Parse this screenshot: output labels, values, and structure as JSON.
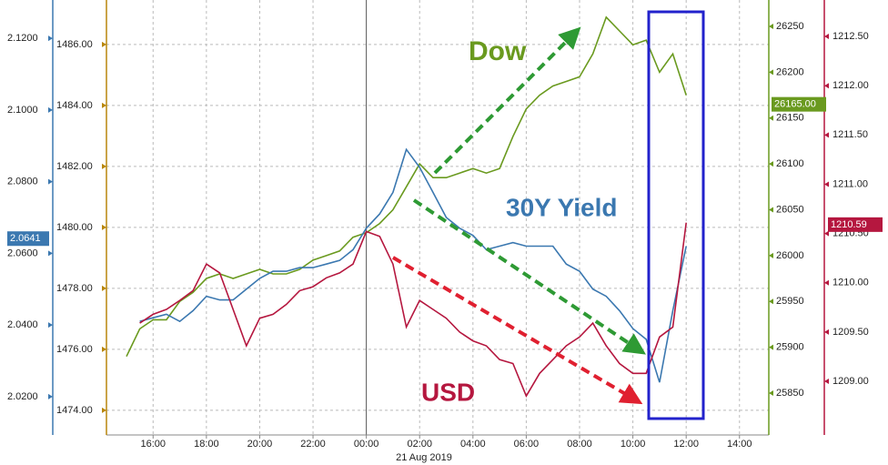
{
  "chart_data": {
    "type": "line",
    "x": [
      "15:00",
      "15:30",
      "16:00",
      "16:30",
      "17:00",
      "17:30",
      "18:00",
      "18:30",
      "19:00",
      "19:30",
      "20:00",
      "20:30",
      "21:00",
      "21:30",
      "22:00",
      "22:30",
      "23:00",
      "23:30",
      "00:00",
      "00:30",
      "01:00",
      "01:30",
      "02:00",
      "02:30",
      "03:00",
      "03:30",
      "04:00",
      "04:30",
      "05:00",
      "05:30",
      "06:00",
      "06:30",
      "07:00",
      "07:30",
      "08:00",
      "08:30",
      "09:00",
      "09:30",
      "10:00",
      "10:30",
      "11:00",
      "11:30",
      "12:00"
    ],
    "xlim": [
      "14:15",
      "15:06"
    ],
    "xticks": [
      "16:00",
      "18:00",
      "20:00",
      "22:00",
      "00:00",
      "02:00",
      "04:00",
      "06:00",
      "08:00",
      "10:00",
      "12:00",
      "14:00"
    ],
    "date_label": "21 Aug 2019",
    "grid": true,
    "y_axes": [
      {
        "color": "#3b78b0",
        "ylim": [
          2.0093,
          2.1307
        ],
        "yticks": [
          {
            "value": 2.02,
            "label": "2.0200"
          },
          {
            "value": 2.04,
            "label": "2.0400"
          },
          {
            "value": 2.06,
            "label": "2.0600"
          },
          {
            "value": 2.08,
            "label": "2.0800"
          },
          {
            "value": 2.1,
            "label": "2.1000"
          },
          {
            "value": 2.12,
            "label": "2.1200"
          }
        ]
      },
      {
        "color": "#b8860b",
        "ylim": [
          1473.19,
          1487.46
        ],
        "yticks": [
          {
            "value": 1474,
            "label": "1474.00"
          },
          {
            "value": 1476,
            "label": "1476.00"
          },
          {
            "value": 1478,
            "label": "1478.00"
          },
          {
            "value": 1480,
            "label": "1480.00"
          },
          {
            "value": 1482,
            "label": "1482.00"
          },
          {
            "value": 1484,
            "label": "1484.00"
          },
          {
            "value": 1486,
            "label": "1486.00"
          }
        ]
      },
      {
        "color": "#6a9a1f",
        "ylim": [
          25804.3,
          26278.8
        ],
        "yticks": [
          25850,
          25900,
          25950,
          26000,
          26050,
          26100,
          26150,
          26200,
          26250
        ]
      },
      {
        "color": "#b5173f",
        "ylim": [
          1208.455,
          1212.87
        ],
        "yticks": [
          {
            "value": 1209,
            "label": "1209.00"
          },
          {
            "value": 1209.5,
            "label": "1209.50"
          },
          {
            "value": 1210,
            "label": "1210.00"
          },
          {
            "value": 1210.5,
            "label": "1210.50"
          },
          {
            "value": 1211,
            "label": "1211.00"
          },
          {
            "value": 1211.5,
            "label": "1211.50"
          },
          {
            "value": 1212,
            "label": "1212.00"
          },
          {
            "value": 1212.5,
            "label": "1212.50"
          }
        ]
      }
    ],
    "series": [
      {
        "name": "Dow",
        "color": "#6a9a1f",
        "axis": 2,
        "last_value": {
          "value": 26165,
          "label": "26165.00"
        },
        "values": [
          25890,
          25920,
          25930,
          25930,
          25950,
          25960,
          25975,
          25980,
          25975,
          25980,
          25985,
          25980,
          25980,
          25985,
          25995,
          26000,
          26005,
          26020,
          26025,
          26035,
          26050,
          26075,
          26100,
          26085,
          26085,
          26090,
          26095,
          26090,
          26095,
          26130,
          26160,
          26175,
          26185,
          26190,
          26195,
          26220,
          26260,
          26245,
          26230,
          26235,
          26200,
          26220,
          26175
        ]
      },
      {
        "name": "30Y Yield",
        "color": "#3b78b0",
        "axis": 0,
        "last_value": {
          "value": 2.0641,
          "label": "2.0641"
        },
        "values": [
          null,
          2.041,
          2.042,
          2.043,
          2.041,
          2.044,
          2.048,
          2.047,
          2.047,
          2.05,
          2.053,
          2.055,
          2.055,
          2.056,
          2.056,
          2.057,
          2.058,
          2.061,
          2.067,
          2.071,
          2.077,
          2.089,
          2.084,
          2.077,
          2.07,
          2.067,
          2.065,
          2.061,
          2.062,
          2.063,
          2.062,
          2.062,
          2.062,
          2.057,
          2.055,
          2.05,
          2.048,
          2.044,
          2.039,
          2.036,
          2.024,
          2.044,
          2.062
        ]
      },
      {
        "name": "USD",
        "color": "#b5173f",
        "axis": 3,
        "last_value": {
          "value": 1210.59,
          "label": "1210.59"
        },
        "values": [
          null,
          1209.59,
          1209.68,
          1209.73,
          1209.82,
          1209.92,
          1210.19,
          1210.1,
          1209.73,
          1209.36,
          1209.64,
          1209.68,
          1209.78,
          1209.92,
          1209.96,
          1210.05,
          1210.1,
          1210.19,
          1210.52,
          1210.47,
          1210.19,
          1209.55,
          1209.82,
          1209.73,
          1209.64,
          1209.5,
          1209.41,
          1209.36,
          1209.22,
          1209.18,
          1208.85,
          1209.08,
          1209.22,
          1209.36,
          1209.45,
          1209.59,
          1209.36,
          1209.18,
          1209.08,
          1209.08,
          1209.45,
          1209.55,
          1210.61
        ]
      }
    ]
  }
}
